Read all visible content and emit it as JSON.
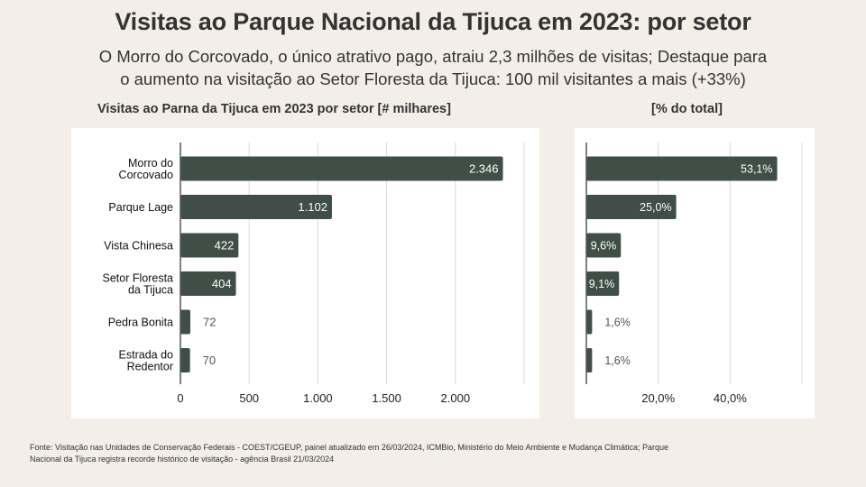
{
  "header": {
    "title": "Visitas ao Parque Nacional da Tijuca em 2023: por setor",
    "subtitle_line1": "O Morro do Corcovado, o único atrativo pago, atraiu 2,3 milhões de visitas; Destaque para",
    "subtitle_line2": "o aumento na visitação ao Setor Floresta da Tijuca: 100 mil visitantes a mais (+33%)"
  },
  "colors": {
    "background": "#f3efe8",
    "panel": "#ffffff",
    "bar": "#3f4e46",
    "grid": "#d9d9d9",
    "axis": "#555555"
  },
  "chart_data": [
    {
      "type": "bar",
      "orientation": "horizontal",
      "title": "Visitas ao Parna da Tijuca em 2023 por setor [# milhares]",
      "xlabel": "",
      "ylabel": "",
      "categories": [
        [
          "Morro do",
          "Corcovado"
        ],
        [
          "Parque Lage"
        ],
        [
          "Vista Chinesa"
        ],
        [
          "Setor Floresta",
          "da Tijuca"
        ],
        [
          "Pedra Bonita"
        ],
        [
          "Estrada do",
          "Redentor"
        ]
      ],
      "values": [
        2346,
        1102,
        422,
        404,
        72,
        70
      ],
      "value_labels": [
        "2.346",
        "1.102",
        "422",
        "404",
        "72",
        "70"
      ],
      "xlim": [
        0,
        2500
      ],
      "xticks": [
        0,
        500,
        1000,
        1500,
        2000,
        2500
      ],
      "xtick_labels": [
        "0",
        "500",
        "1.000",
        "1.500",
        "2.000",
        ""
      ],
      "grid": true
    },
    {
      "type": "bar",
      "orientation": "horizontal",
      "title": "[% do total]",
      "xlabel": "",
      "ylabel": "",
      "categories": [
        [
          "Morro do",
          "Corcovado"
        ],
        [
          "Parque Lage"
        ],
        [
          "Vista Chinesa"
        ],
        [
          "Setor Floresta",
          "da Tijuca"
        ],
        [
          "Pedra Bonita"
        ],
        [
          "Estrada do",
          "Redentor"
        ]
      ],
      "values": [
        53.1,
        25.0,
        9.6,
        9.1,
        1.6,
        1.6
      ],
      "value_labels": [
        "53,1%",
        "25,0%",
        "9,6%",
        "9,1%",
        "1,6%",
        "1,6%"
      ],
      "xlim": [
        0,
        60
      ],
      "xticks": [
        0,
        20,
        40,
        60
      ],
      "xtick_labels": [
        "",
        "20,0%",
        "40,0%",
        ""
      ],
      "grid": true
    }
  ],
  "footer": {
    "source_line1": "Fonte: Visitação nas Unidades de Conservação Federais - COEST/CGEUP, painel atualizado em 26/03/2024, ICMBio, Ministério do Meio Ambiente e Mudança Climática; Parque",
    "source_line2": "Nacional da Tijuca registra recorde histórico de visitação - agência Brasil 21/03/2024"
  }
}
